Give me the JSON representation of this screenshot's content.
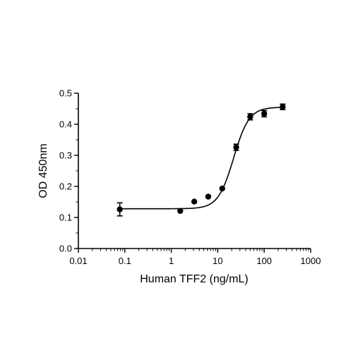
{
  "chart_data": {
    "type": "scatter",
    "xlabel": "Human TFF2 (ng/mL)",
    "ylabel": "OD 450nm",
    "xscale": "log",
    "xlim": [
      0.01,
      1000
    ],
    "ylim": [
      0.0,
      0.5
    ],
    "x_ticks": [
      0.01,
      0.1,
      1,
      10,
      100,
      1000
    ],
    "x_tick_labels": [
      "0.01",
      "0.1",
      "1",
      "10",
      "100",
      "1000"
    ],
    "y_ticks": [
      0.0,
      0.1,
      0.2,
      0.3,
      0.4,
      0.5
    ],
    "y_tick_labels": [
      "0.0",
      "0.1",
      "0.2",
      "0.3",
      "0.4",
      "0.5"
    ],
    "grid": false,
    "series": [
      {
        "x": [
          0.078,
          1.56,
          3.125,
          6.25,
          12.5,
          25,
          50,
          100,
          250
        ],
        "y": [
          0.126,
          0.121,
          0.151,
          0.167,
          0.193,
          0.326,
          0.424,
          0.434,
          0.456
        ],
        "error": [
          0.021,
          0.0,
          0.0,
          0.0,
          0.0,
          0.01,
          0.01,
          0.01,
          0.009
        ],
        "color": "#000000",
        "marker": "circle"
      }
    ],
    "fit_curve": {
      "model": "4PL",
      "bottom": 0.128,
      "top": 0.455,
      "ec50": 22,
      "hill": 2.6,
      "color": "#000000"
    }
  }
}
